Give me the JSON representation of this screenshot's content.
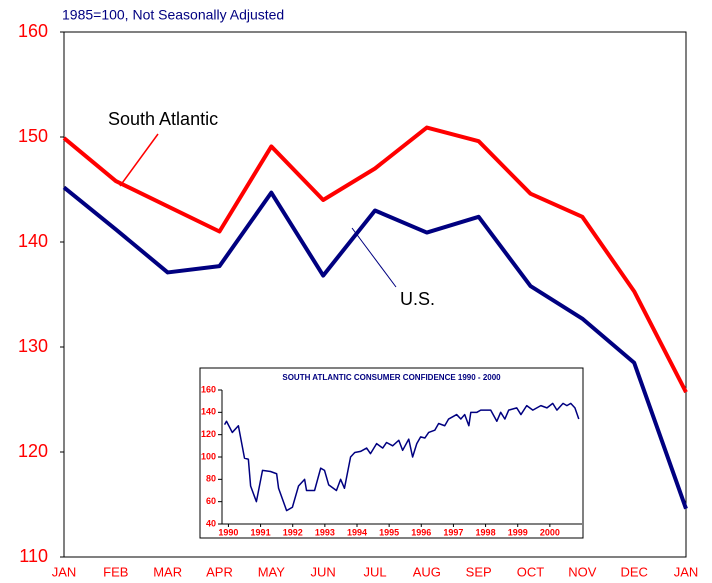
{
  "chart_data": [
    {
      "type": "line",
      "subtitle": "1985=100, Not Seasonally Adjusted",
      "categories": [
        "JAN",
        "FEB",
        "MAR",
        "APR",
        "MAY",
        "JUN",
        "JUL",
        "AUG",
        "SEP",
        "OCT",
        "NOV",
        "DEC",
        "JAN"
      ],
      "series": [
        {
          "name": "South Atlantic",
          "color": "#ff0000",
          "values": [
            149.9,
            145.8,
            143.4,
            141.0,
            149.1,
            144.0,
            147.0,
            150.9,
            149.6,
            144.6,
            142.4,
            135.3,
            125.7
          ]
        },
        {
          "name": "U.S.",
          "color": "#000080",
          "values": [
            145.2,
            141.2,
            137.1,
            137.7,
            144.7,
            136.8,
            143.0,
            140.9,
            142.4,
            135.8,
            132.7,
            128.5,
            114.6
          ]
        }
      ],
      "ylim": [
        110,
        160
      ],
      "yticks": [
        110,
        120,
        130,
        140,
        150,
        160
      ],
      "tick_color": "#ff0000",
      "grid": false
    },
    {
      "type": "line",
      "title": "SOUTH ATLANTIC CONSUMER CONFIDENCE 1990 - 2000",
      "x": [
        1989.88,
        1989.94,
        1990.12,
        1990.31,
        1990.5,
        1990.62,
        1990.69,
        1990.87,
        1991.06,
        1991.31,
        1991.5,
        1991.56,
        1991.81,
        1991.99,
        1992.18,
        1992.37,
        1992.43,
        1992.68,
        1992.87,
        1992.99,
        1993.12,
        1993.36,
        1993.49,
        1993.61,
        1993.8,
        1993.93,
        1994.11,
        1994.3,
        1994.42,
        1994.61,
        1994.8,
        1994.92,
        1995.11,
        1995.3,
        1995.42,
        1995.61,
        1995.73,
        1995.86,
        1995.98,
        1996.11,
        1996.23,
        1996.42,
        1996.54,
        1996.73,
        1996.85,
        1997.1,
        1997.23,
        1997.35,
        1997.48,
        1997.54,
        1997.73,
        1997.85,
        1998.16,
        1998.35,
        1998.47,
        1998.6,
        1998.72,
        1998.97,
        1999.1,
        1999.28,
        1999.47,
        1999.72,
        1999.91,
        2000.09,
        2000.22,
        2000.41,
        2000.53,
        2000.65,
        2000.78,
        2000.9
      ],
      "series": [
        {
          "name": "South Atlantic",
          "color": "#000080",
          "values": [
            129,
            132,
            122,
            128,
            99,
            98,
            74,
            60,
            88,
            87,
            85,
            72,
            52,
            55,
            74,
            80,
            70,
            70,
            90,
            88,
            75,
            70,
            80,
            72,
            100,
            104,
            105,
            108,
            103,
            112,
            108,
            113,
            110,
            115,
            106,
            116,
            100,
            112,
            118,
            117,
            122,
            124,
            130,
            128,
            134,
            138,
            134,
            138,
            128,
            140,
            140,
            142,
            142,
            132,
            140,
            134,
            142,
            144,
            138,
            146,
            142,
            146,
            144,
            148,
            142,
            148,
            146,
            148,
            144,
            134
          ]
        }
      ],
      "xlim": [
        1989.8,
        2001.0
      ],
      "xticks": [
        1990,
        1991,
        1992,
        1993,
        1994,
        1995,
        1996,
        1997,
        1998,
        1999,
        2000
      ],
      "ylim": [
        40,
        160
      ],
      "yticks": [
        40,
        60,
        80,
        100,
        120,
        140,
        160
      ],
      "tick_color": "#ff0000",
      "grid": false
    }
  ]
}
